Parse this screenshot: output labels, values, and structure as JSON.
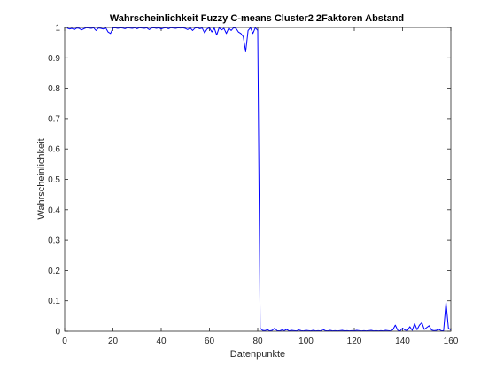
{
  "chart_data": {
    "type": "line",
    "title": "Wahrscheinlichkeit Fuzzy C-means Cluster2 2Faktoren Abstand",
    "xlabel": "Datenpunkte",
    "ylabel": "Wahrscheinlichkeit",
    "xlim": [
      0,
      160
    ],
    "ylim": [
      0,
      1
    ],
    "xticks": [
      0,
      20,
      40,
      60,
      80,
      100,
      120,
      140,
      160
    ],
    "yticks": [
      0,
      0.1,
      0.2,
      0.3,
      0.4,
      0.5,
      0.6,
      0.7,
      0.8,
      0.9,
      1
    ],
    "ytick_labels": [
      "0",
      "0.1",
      "0.2",
      "0.3",
      "0.4",
      "0.5",
      "0.6",
      "0.7",
      "0.8",
      "0.9",
      "1"
    ],
    "grid": false,
    "line_color": "#0000ff",
    "series": [
      {
        "x": [
          1,
          2,
          3,
          4,
          5,
          6,
          7,
          8,
          9,
          10,
          11,
          12,
          13,
          14,
          15,
          16,
          17,
          18,
          19,
          20,
          21,
          22,
          23,
          24,
          25,
          26,
          27,
          28,
          29,
          30,
          31,
          32,
          33,
          34,
          35,
          36,
          37,
          38,
          39,
          40,
          41,
          42,
          43,
          44,
          45,
          46,
          47,
          48,
          49,
          50,
          51,
          52,
          53,
          54,
          55,
          56,
          57,
          58,
          59,
          60,
          61,
          62,
          63,
          64,
          65,
          66,
          67,
          68,
          69,
          70,
          71,
          72,
          73,
          74,
          75,
          76,
          77,
          78,
          79,
          80,
          81,
          82,
          83,
          84,
          85,
          86,
          87,
          88,
          89,
          90,
          91,
          92,
          93,
          94,
          95,
          96,
          97,
          98,
          99,
          100,
          101,
          102,
          103,
          104,
          105,
          106,
          107,
          108,
          109,
          110,
          111,
          112,
          113,
          114,
          115,
          116,
          117,
          118,
          119,
          120,
          121,
          122,
          123,
          124,
          125,
          126,
          127,
          128,
          129,
          130,
          131,
          132,
          133,
          134,
          135,
          136,
          137,
          138,
          139,
          140,
          141,
          142,
          143,
          144,
          145,
          146,
          147,
          148,
          149,
          150,
          151,
          152,
          153,
          154,
          155,
          156,
          157,
          158,
          159,
          160
        ],
        "y": [
          0.998,
          0.995,
          0.997,
          0.993,
          0.998,
          0.997,
          0.992,
          0.996,
          0.999,
          0.998,
          0.997,
          0.999,
          0.99,
          0.998,
          0.997,
          0.995,
          0.999,
          0.985,
          0.98,
          0.998,
          0.999,
          0.997,
          0.999,
          0.998,
          0.996,
          0.999,
          0.998,
          0.997,
          0.999,
          0.996,
          0.999,
          0.998,
          0.997,
          0.999,
          0.993,
          0.998,
          0.999,
          0.997,
          0.999,
          0.995,
          0.998,
          0.999,
          0.996,
          0.999,
          0.998,
          0.997,
          0.999,
          0.998,
          0.999,
          0.997,
          0.993,
          0.999,
          0.99,
          0.998,
          0.999,
          0.996,
          0.998,
          0.982,
          0.995,
          0.999,
          0.985,
          0.998,
          0.975,
          0.999,
          0.992,
          0.997,
          0.98,
          0.998,
          0.99,
          0.999,
          0.997,
          0.985,
          0.98,
          0.97,
          0.92,
          0.99,
          0.999,
          0.98,
          0.999,
          0.99,
          0.01,
          0.003,
          0.002,
          0.005,
          0.001,
          0.003,
          0.01,
          0.002,
          0.001,
          0.004,
          0.002,
          0.006,
          0.001,
          0.003,
          0.002,
          0.001,
          0.004,
          0.002,
          0.001,
          0.003,
          0.002,
          0.001,
          0.003,
          0.001,
          0.002,
          0.001,
          0.006,
          0.002,
          0.001,
          0.003,
          0.001,
          0.002,
          0.001,
          0.002,
          0.003,
          0.001,
          0.002,
          0.001,
          0.002,
          0.001,
          0.003,
          0.002,
          0.001,
          0.002,
          0.001,
          0.002,
          0.003,
          0.001,
          0.002,
          0.001,
          0.002,
          0.001,
          0.003,
          0.002,
          0.001,
          0.005,
          0.02,
          0.003,
          0.001,
          0.01,
          0.004,
          0.002,
          0.015,
          0.003,
          0.025,
          0.005,
          0.02,
          0.028,
          0.006,
          0.012,
          0.018,
          0.004,
          0.002,
          0.003,
          0.006,
          0.002,
          0.001,
          0.095,
          0.01,
          0.004
        ]
      }
    ]
  }
}
